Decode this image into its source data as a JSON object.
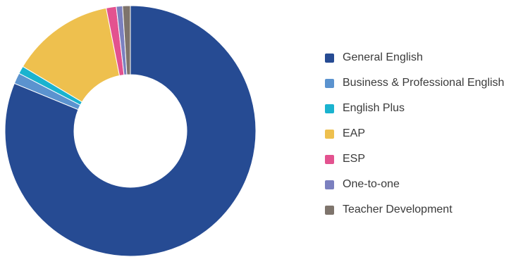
{
  "chart_data": {
    "type": "pie",
    "title": "",
    "donut": true,
    "legend_position": "right",
    "categories": [
      "General English",
      "Business & Professional English",
      "English Plus",
      "EAP",
      "ESP",
      "One-to-one",
      "Teacher Development"
    ],
    "values": [
      81.2,
      1.4,
      1.0,
      13.3,
      1.3,
      0.8,
      1.0
    ],
    "unit": "%",
    "colors": [
      "#264b93",
      "#5b93cf",
      "#1ab3cf",
      "#eec04e",
      "#e3528f",
      "#7b80bf",
      "#7e746c"
    ]
  }
}
